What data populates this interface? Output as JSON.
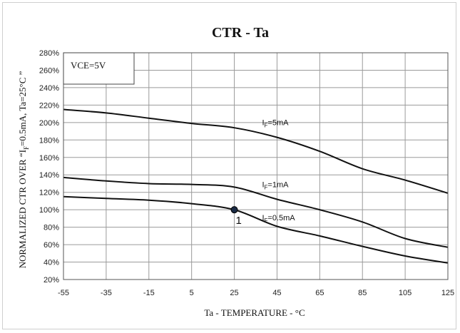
{
  "chart_data": {
    "type": "line",
    "title": "CTR - Ta",
    "xlabel": "Ta - TEMPERATURE - °C",
    "ylabel_prefix": "NORMALIZED CTR OVER  “I",
    "ylabel_sub": "F",
    "ylabel_suffix": "=0.5mA, Ta=25°C ”",
    "condition": "VCE=5V",
    "x_ticks": [
      "-55",
      "-35",
      "-15",
      "5",
      "25",
      "45",
      "65",
      "85",
      "105",
      "125"
    ],
    "y_ticks": [
      "20%",
      "40%",
      "60%",
      "80%",
      "100%",
      "120%",
      "140%",
      "160%",
      "180%",
      "200%",
      "220%",
      "240%",
      "260%",
      "280%"
    ],
    "xlim": [
      -55,
      125
    ],
    "ylim": [
      20,
      280
    ],
    "grid": true,
    "series": [
      {
        "name": "IF=5mA",
        "label_main": "I",
        "label_sub": "F",
        "label_rest": "=5mA",
        "x": [
          -55,
          -35,
          -15,
          5,
          25,
          45,
          65,
          85,
          105,
          125
        ],
        "y": [
          215,
          211,
          205,
          199,
          194,
          183,
          167,
          147,
          134,
          119
        ]
      },
      {
        "name": "IF=1mA",
        "label_main": "I",
        "label_sub": "F",
        "label_rest": "=1mA",
        "x": [
          -55,
          -35,
          -15,
          5,
          25,
          45,
          65,
          85,
          105,
          125
        ],
        "y": [
          137,
          133,
          130,
          129,
          126,
          112,
          100,
          86,
          67,
          57
        ]
      },
      {
        "name": "IF=0.5mA",
        "label_main": "I",
        "label_sub": "F",
        "label_rest": "=0.5mA",
        "x": [
          -55,
          -35,
          -15,
          5,
          25,
          45,
          65,
          85,
          105,
          125
        ],
        "y": [
          115,
          113,
          111,
          107,
          100,
          81,
          70,
          58,
          47,
          39
        ]
      }
    ],
    "marker": {
      "x": 25,
      "y": 100,
      "label": "1"
    }
  }
}
